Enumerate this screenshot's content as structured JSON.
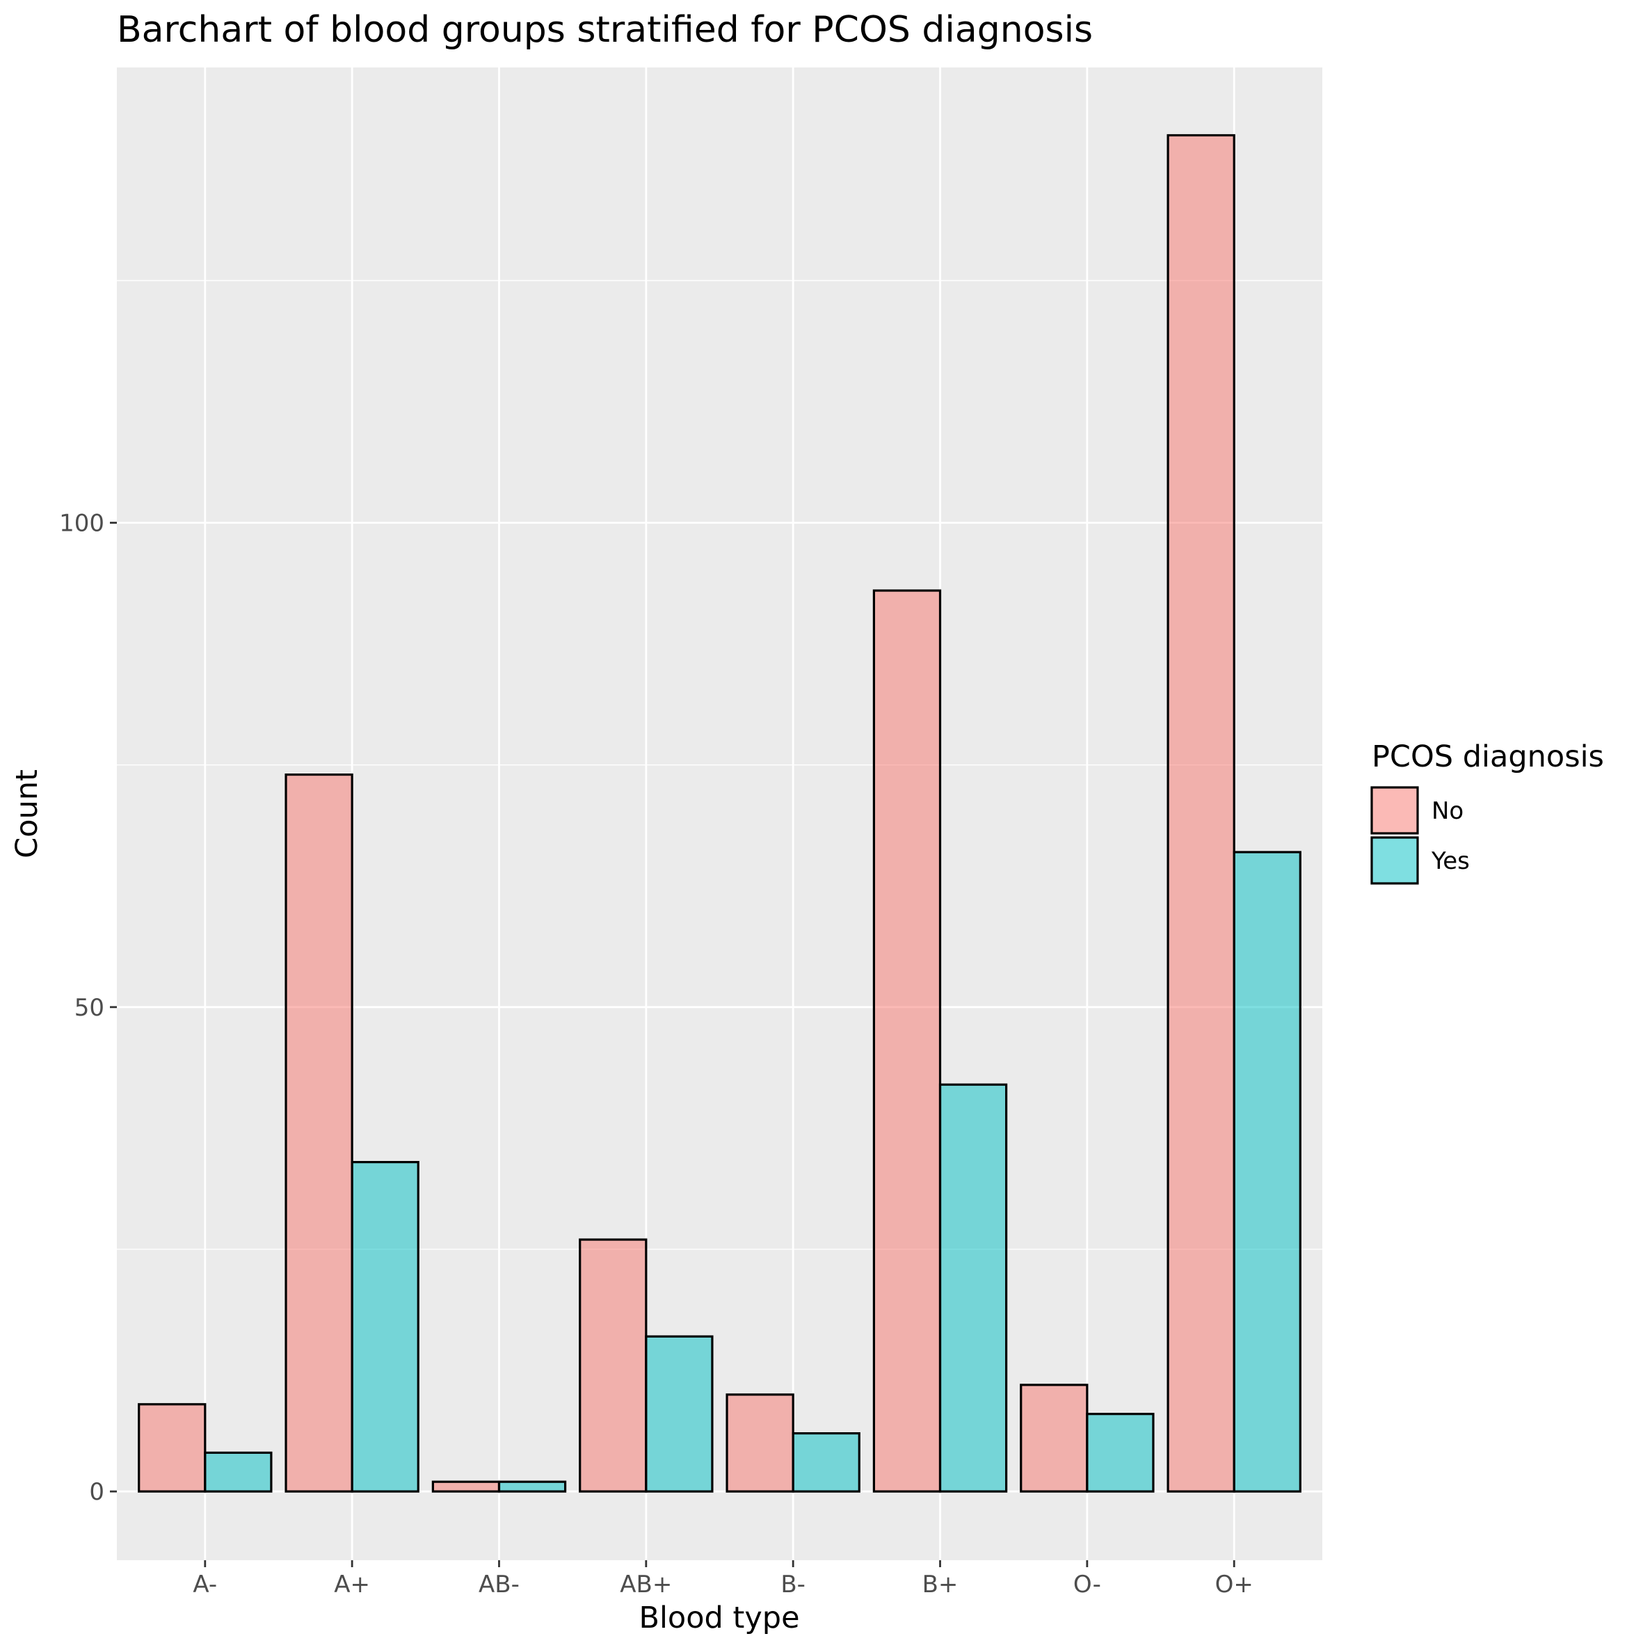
{
  "chart_data": {
    "type": "bar",
    "title": "Barchart of blood groups stratified for PCOS diagnosis",
    "xlabel": "Blood type",
    "ylabel": "Count",
    "categories": [
      "A-",
      "A+",
      "AB-",
      "AB+",
      "B-",
      "B+",
      "O-",
      "O+"
    ],
    "series": [
      {
        "name": "No",
        "color": "#F8766D",
        "values": [
          9,
          74,
          1,
          26,
          10,
          93,
          11,
          140
        ]
      },
      {
        "name": "Yes",
        "color": "#00BFC4",
        "values": [
          4,
          34,
          1,
          16,
          6,
          42,
          8,
          66
        ]
      }
    ],
    "bar_fill_opacity": 0.5,
    "ylim": [
      -7.1,
      147
    ],
    "yticks": [
      0,
      50,
      100
    ],
    "legend": {
      "title": "PCOS diagnosis",
      "position": "right"
    },
    "grid": true,
    "panel_background": "#EBEBEB",
    "bar_outline_color": "#000000"
  }
}
